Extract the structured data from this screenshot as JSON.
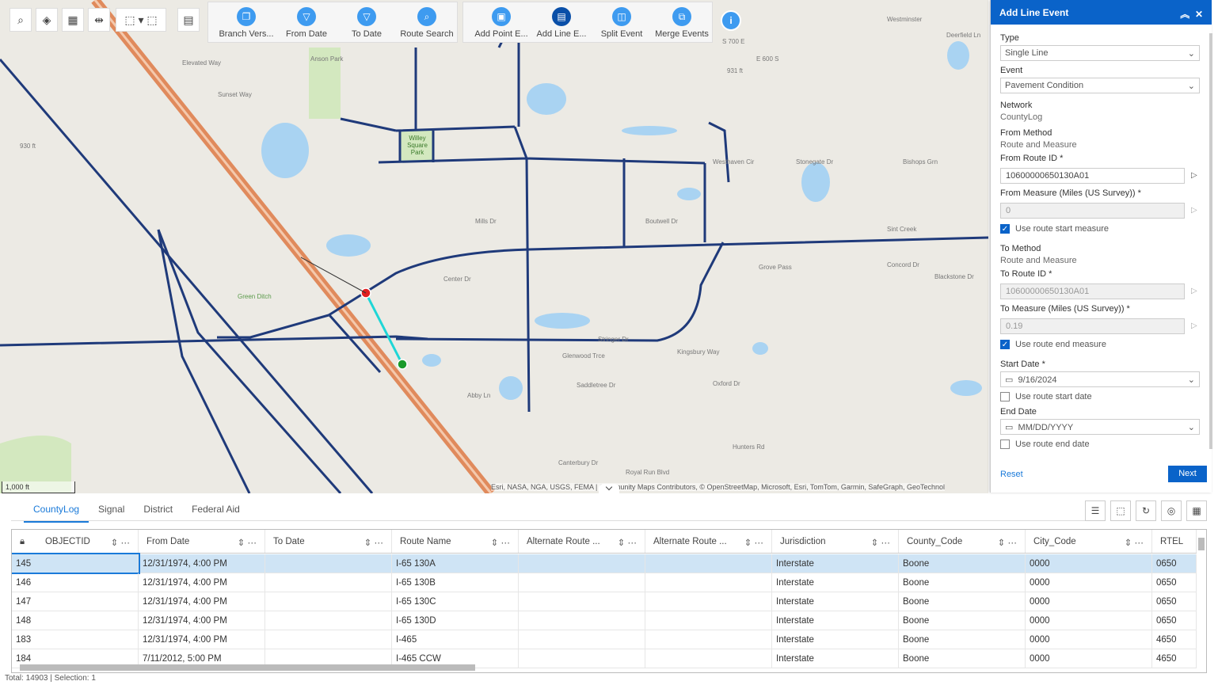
{
  "toolbar": {
    "tools": [
      "search-icon",
      "layers-icon",
      "select-icon",
      "measure-icon",
      "select-by-rect-icon",
      "clear-selection-icon",
      "table-icon"
    ],
    "group1": [
      {
        "label": "Branch Vers...",
        "icon": "branch-versions-icon"
      },
      {
        "label": "From Date",
        "icon": "filter-icon"
      },
      {
        "label": "To Date",
        "icon": "filter-icon"
      },
      {
        "label": "Route Search",
        "icon": "route-search-icon"
      }
    ],
    "group2": [
      {
        "label": "Add Point E...",
        "icon": "add-point-event-icon"
      },
      {
        "label": "Add Line E...",
        "icon": "add-line-event-icon"
      },
      {
        "label": "Split Event",
        "icon": "split-event-icon"
      },
      {
        "label": "Merge Events",
        "icon": "merge-events-icon"
      }
    ]
  },
  "map": {
    "scale": "1,000 ft",
    "attribution": "Esri, NASA, NGA, USGS, FEMA | Community Maps Contributors, © OpenStreetMap, Microsoft, Esri, TomTom, Garmin, SafeGraph, GeoTechnol",
    "labels": [
      "Elevated Way",
      "Sunset Way",
      "Anson Park",
      "Willey Square Park",
      "Mills Dr",
      "Boutwell Dr",
      "Center Dr",
      "Grove Pass",
      "Kingsbury Way",
      "Glenwood Trce",
      "Saddletree Dr",
      "Royal Run Blvd",
      "Canterbury Dr",
      "Abby Ln",
      "Oxford Dr",
      "Westhaven Cir",
      "Bishops Grn",
      "Stonegate Dr",
      "Deerfield Ln",
      "Concord Dr",
      "Blackstone Dr",
      "Green Ditch",
      "930 ft",
      "931 ft",
      "Stringer Dr",
      "E 600 S",
      "S 700 E",
      "Sint Creek",
      "Hunters Rd",
      "Westminster"
    ],
    "colors": {
      "route": "#1f3a7a",
      "highway": "#e08a5c",
      "selected": "#1fd6d6",
      "start": "#e02020",
      "end": "#1a9a2a"
    }
  },
  "panel": {
    "title": "Add Line Event",
    "type_label": "Type",
    "type_value": "Single Line",
    "event_label": "Event",
    "event_value": "Pavement Condition",
    "network_label": "Network",
    "network_value": "CountyLog",
    "from_method_label": "From Method",
    "from_method_value": "Route and Measure",
    "from_route_label": "From Route ID *",
    "from_route_value": "10600000650130A01",
    "from_measure_label": "From Measure (Miles (US Survey)) *",
    "from_measure_value": "0",
    "use_start_measure": "Use route start measure",
    "use_start_measure_checked": true,
    "to_method_label": "To Method",
    "to_method_value": "Route and Measure",
    "to_route_label": "To Route ID *",
    "to_route_value": "10600000650130A01",
    "to_measure_label": "To Measure (Miles (US Survey)) *",
    "to_measure_value": "0.19",
    "use_end_measure": "Use route end measure",
    "use_end_measure_checked": true,
    "start_date_label": "Start Date *",
    "start_date_value": "9/16/2024",
    "use_start_date": "Use route start date",
    "use_start_date_checked": false,
    "end_date_label": "End Date",
    "end_date_placeholder": "MM/DD/YYYY",
    "use_end_date": "Use route end date",
    "use_end_date_checked": false,
    "reset": "Reset",
    "next": "Next"
  },
  "table": {
    "tabs": [
      "CountyLog",
      "Signal",
      "District",
      "Federal Aid"
    ],
    "active_tab": 0,
    "columns": [
      "OBJECTID",
      "From Date",
      "To Date",
      "Route Name",
      "Alternate Route ...",
      "Alternate Route ...",
      "Jurisdiction",
      "County_Code",
      "City_Code",
      "RTEL"
    ],
    "rows": [
      [
        "145",
        "12/31/1974, 4:00 PM",
        "",
        "I-65 130A",
        "",
        "",
        "Interstate",
        "Boone",
        "0000",
        "0650"
      ],
      [
        "146",
        "12/31/1974, 4:00 PM",
        "",
        "I-65 130B",
        "",
        "",
        "Interstate",
        "Boone",
        "0000",
        "0650"
      ],
      [
        "147",
        "12/31/1974, 4:00 PM",
        "",
        "I-65 130C",
        "",
        "",
        "Interstate",
        "Boone",
        "0000",
        "0650"
      ],
      [
        "148",
        "12/31/1974, 4:00 PM",
        "",
        "I-65 130D",
        "",
        "",
        "Interstate",
        "Boone",
        "0000",
        "0650"
      ],
      [
        "183",
        "12/31/1974, 4:00 PM",
        "",
        "I-465",
        "",
        "",
        "Interstate",
        "Boone",
        "0000",
        "4650"
      ],
      [
        "184",
        "7/11/2012, 5:00 PM",
        "",
        "I-465 CCW",
        "",
        "",
        "Interstate",
        "Boone",
        "0000",
        "4650"
      ]
    ],
    "selected_row": 0,
    "status": "Total: 14903 | Selection: 1"
  }
}
